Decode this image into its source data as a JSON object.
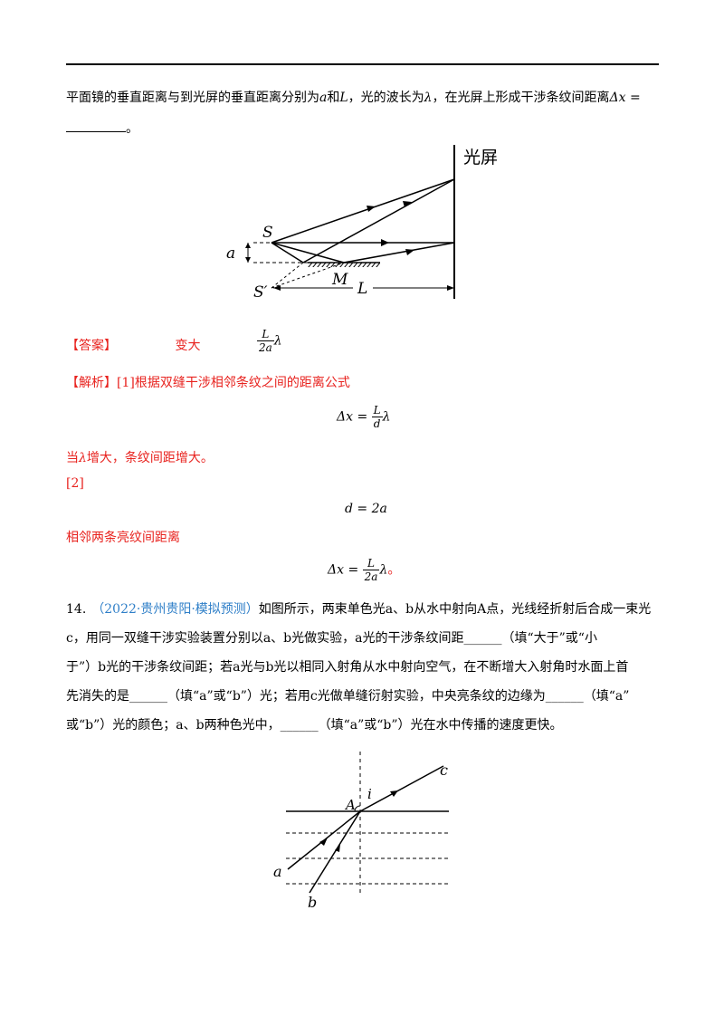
{
  "intro": {
    "text1": "平面镜的垂直距离与到光屏的垂直距离分别为",
    "var_a": "a",
    "and": "和",
    "var_L": "L",
    "text2": "，光的波长为",
    "lambda": "λ",
    "text3": "，在光屏上形成干涉条纹间距离",
    "dx": "Δx =",
    "tail": "。"
  },
  "figure1": {
    "screen_label": "光屏",
    "S": "S",
    "Sprime": "S′",
    "a": "a",
    "M": "M",
    "L": "L"
  },
  "answer": {
    "label": "【答案】",
    "answer1": "变大",
    "answer2_num": "L",
    "answer2_den": "2a",
    "answer2_lambda": "λ"
  },
  "analysis": {
    "label": "【解析】",
    "text": "[1]根据双缝干涉相邻条纹之间的距离公式",
    "eq1_lhs": "Δx =",
    "eq1_num": "L",
    "eq1_den": "d",
    "eq1_lambda": "λ",
    "line2_pre": "当",
    "line2_lambda": "λ",
    "line2_post": "增大，条纹间距增大。",
    "step2": "[2]",
    "eq2": "d = 2a",
    "line3": "相邻两条亮纹间距离",
    "eq3_lhs": "Δx =",
    "eq3_num": "L",
    "eq3_den": "2a",
    "eq3_lambda": "λ",
    "eq3_tail": "。"
  },
  "q14": {
    "number": "14.",
    "source": "（2022·贵州贵阳·模拟预测）",
    "l1": "如图所示，两束单色光a、b从水中射向A点，光线经折射后合成一束光",
    "l2": "c，用同一双缝干涉实验装置分别以a、b光做实验，a光的干涉条纹间距______（填“大于”或“小",
    "l3": "于”）b光的干涉条纹间距；若a光与b光以相同入射角从水中射向空气，在不断增大入射角时水面上首",
    "l4": "先消失的是______（填“a”或“b”）光；若用c光做单缝衍射实验，中央亮条纹的边缘为______（填“a”",
    "l5": "或“b”）光的颜色；a、b两种色光中，______（填“a”或“b”）光在水中传播的速度更快。"
  },
  "figure2": {
    "A": "A",
    "i": "i",
    "c": "c",
    "a": "a",
    "b": "b"
  }
}
